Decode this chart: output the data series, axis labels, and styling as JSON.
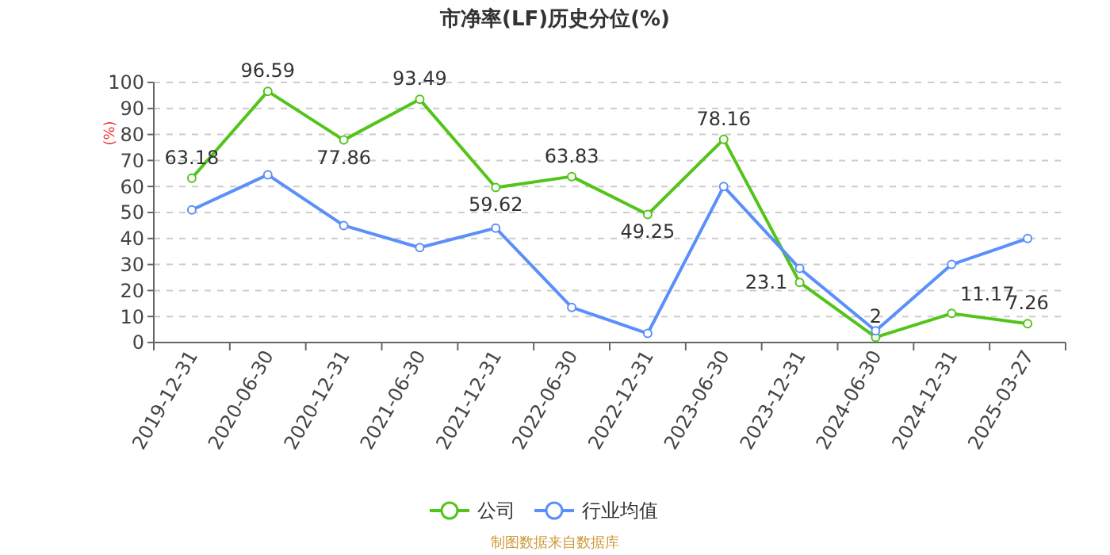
{
  "chart_data": {
    "type": "line",
    "title": "市净率(LF)历史分位(%)",
    "ylabel": "(%)",
    "categories": [
      "2019-12-31",
      "2020-06-30",
      "2020-12-31",
      "2021-06-30",
      "2021-12-31",
      "2022-06-30",
      "2022-12-31",
      "2023-06-30",
      "2023-12-31",
      "2024-06-30",
      "2024-12-31",
      "2025-03-27"
    ],
    "series": [
      {
        "name": "公司",
        "color": "#52c41a",
        "values": [
          63.18,
          96.59,
          77.86,
          93.49,
          59.62,
          63.83,
          49.25,
          78.16,
          23.1,
          2,
          11.17,
          7.26
        ],
        "value_labels": [
          "63.18",
          "96.59",
          "77.86",
          "93.49",
          "59.62",
          "63.83",
          "49.25",
          "78.16",
          "23.1",
          "2",
          "11.17",
          "7.26"
        ]
      },
      {
        "name": "行业均值",
        "color": "#5b8ff9",
        "values": [
          51,
          64.5,
          45,
          36.5,
          44,
          13.5,
          3.5,
          60,
          28.5,
          4.5,
          30,
          40
        ]
      }
    ],
    "ylim": [
      0,
      100
    ],
    "yticks": [
      0,
      10,
      20,
      30,
      40,
      50,
      60,
      70,
      80,
      90,
      100
    ],
    "grid": "y",
    "legend": "bottom",
    "marker": "circle",
    "line_style": "solid",
    "annotations": [
      "制图数据来自数据库"
    ]
  }
}
